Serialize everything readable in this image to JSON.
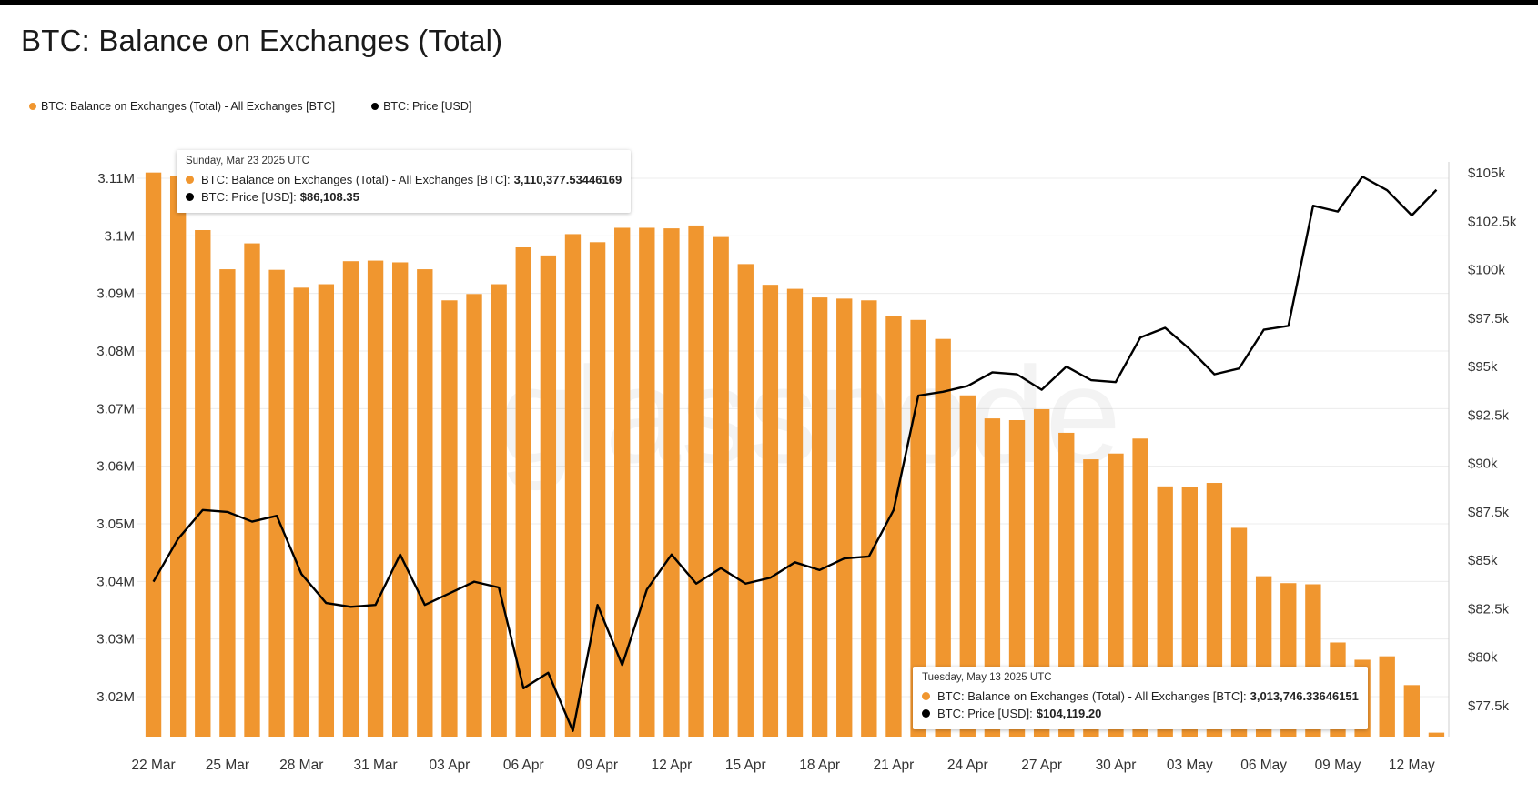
{
  "chart_data": {
    "type": "bar",
    "title": "BTC: Balance on Exchanges (Total)",
    "legend_position": "top-left",
    "grid": true,
    "watermark": "glassnode",
    "colors": {
      "balance": "#F0962F",
      "price": "#000000"
    },
    "x": [
      "22 Mar",
      "23 Mar",
      "24 Mar",
      "25 Mar",
      "26 Mar",
      "27 Mar",
      "28 Mar",
      "29 Mar",
      "30 Mar",
      "31 Mar",
      "01 Apr",
      "02 Apr",
      "03 Apr",
      "04 Apr",
      "05 Apr",
      "06 Apr",
      "07 Apr",
      "08 Apr",
      "09 Apr",
      "10 Apr",
      "11 Apr",
      "12 Apr",
      "13 Apr",
      "14 Apr",
      "15 Apr",
      "16 Apr",
      "17 Apr",
      "18 Apr",
      "19 Apr",
      "20 Apr",
      "21 Apr",
      "22 Apr",
      "23 Apr",
      "24 Apr",
      "25 Apr",
      "26 Apr",
      "27 Apr",
      "28 Apr",
      "29 Apr",
      "30 Apr",
      "01 May",
      "02 May",
      "03 May",
      "04 May",
      "05 May",
      "06 May",
      "07 May",
      "08 May",
      "09 May",
      "10 May",
      "11 May",
      "12 May",
      "13 May"
    ],
    "x_tick_labels": [
      "22 Mar",
      "25 Mar",
      "28 Mar",
      "31 Mar",
      "03 Apr",
      "06 Apr",
      "09 Apr",
      "12 Apr",
      "15 Apr",
      "18 Apr",
      "21 Apr",
      "24 Apr",
      "27 Apr",
      "30 Apr",
      "03 May",
      "06 May",
      "09 May",
      "12 May"
    ],
    "y_left": {
      "ticks": [
        "3.02M",
        "3.03M",
        "3.04M",
        "3.05M",
        "3.06M",
        "3.07M",
        "3.08M",
        "3.09M",
        "3.1M",
        "3.11M"
      ],
      "range": [
        3013000,
        3111000
      ]
    },
    "y_right": {
      "ticks": [
        "$77.5k",
        "$80k",
        "$82.5k",
        "$85k",
        "$87.5k",
        "$90k",
        "$92.5k",
        "$95k",
        "$97.5k",
        "$100k",
        "$102.5k",
        "$105k"
      ],
      "range": [
        76000,
        105000
      ]
    },
    "series": [
      {
        "name": "BTC: Balance on Exchanges (Total) - All Exchanges [BTC]",
        "kind": "bar",
        "axis": "left",
        "values": [
          3111000,
          3110377.53,
          3101000,
          3094200,
          3098700,
          3094100,
          3091000,
          3091600,
          3095600,
          3095700,
          3095400,
          3094200,
          3088800,
          3089900,
          3091600,
          3098000,
          3096600,
          3100300,
          3098900,
          3101400,
          3101400,
          3101300,
          3101800,
          3099800,
          3095100,
          3091500,
          3090800,
          3089300,
          3089100,
          3088800,
          3086000,
          3085400,
          3082100,
          3072300,
          3068300,
          3068000,
          3069900,
          3065800,
          3061200,
          3062200,
          3064800,
          3056500,
          3056400,
          3057100,
          3049300,
          3040900,
          3039700,
          3039500,
          3029400,
          3026400,
          3027000,
          3022000,
          3013746.34
        ]
      },
      {
        "name": "BTC: Price [USD]",
        "kind": "line",
        "axis": "right",
        "values": [
          83900,
          86108.35,
          87600,
          87500,
          87000,
          87300,
          84300,
          82800,
          82600,
          82700,
          85300,
          82700,
          83300,
          83900,
          83600,
          78400,
          79200,
          76200,
          82700,
          79600,
          83500,
          85300,
          83800,
          84600,
          83800,
          84100,
          84900,
          84500,
          85100,
          85200,
          87600,
          93500,
          93700,
          94000,
          94700,
          94600,
          93800,
          95000,
          94300,
          94200,
          96500,
          97000,
          95900,
          94600,
          94900,
          96900,
          97100,
          103300,
          103000,
          104800,
          104100,
          102800,
          104119.2
        ]
      }
    ],
    "tooltips": [
      {
        "date": "Sunday, Mar 23 2025 UTC",
        "rows": [
          {
            "label": "BTC: Balance on Exchanges (Total) - All Exchanges [BTC]:",
            "value": "3,110,377.53446169"
          },
          {
            "label": "BTC: Price [USD]:",
            "value": "$86,108.35"
          }
        ]
      },
      {
        "date": "Tuesday, May 13 2025 UTC",
        "rows": [
          {
            "label": "BTC: Balance on Exchanges (Total) - All Exchanges [BTC]:",
            "value": "3,013,746.33646151"
          },
          {
            "label": "BTC: Price [USD]:",
            "value": "$104,119.20"
          }
        ]
      }
    ]
  }
}
